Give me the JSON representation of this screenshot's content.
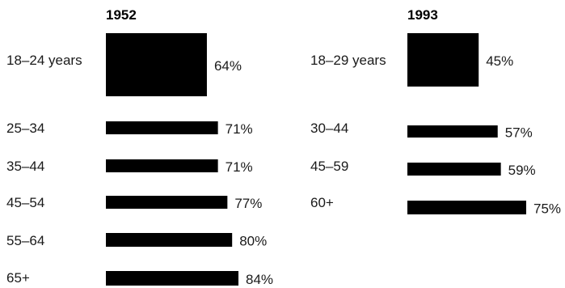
{
  "chart_data": [
    {
      "type": "bar",
      "title": "1952",
      "categories": [
        "18–24 years",
        "25–34",
        "35–44",
        "45–54",
        "55–64",
        "65+"
      ],
      "values": [
        64,
        71,
        71,
        77,
        80,
        84
      ],
      "value_labels": [
        "64%",
        "71%",
        "71%",
        "77%",
        "80%",
        "84%"
      ],
      "unit": "%",
      "orientation": "horizontal"
    },
    {
      "type": "bar",
      "title": "1993",
      "categories": [
        "18–29 years",
        "30–44",
        "45–59",
        "60+"
      ],
      "values": [
        45,
        57,
        59,
        75
      ],
      "value_labels": [
        "45%",
        "57%",
        "59%",
        "75%"
      ],
      "unit": "%",
      "orientation": "horizontal"
    }
  ],
  "colors": {
    "bar": "#000000",
    "text": "#1a1a1a"
  }
}
